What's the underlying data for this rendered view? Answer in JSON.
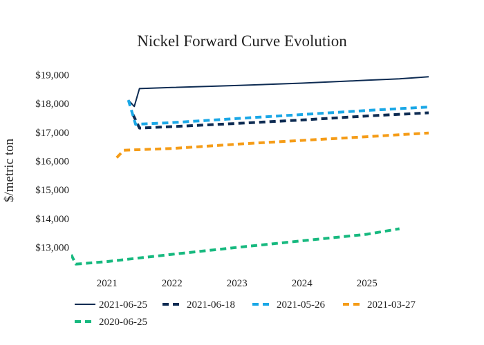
{
  "chart_data": {
    "type": "line",
    "title": "Nickel Forward Curve Evolution",
    "xlabel": "",
    "ylabel": "$/metric ton",
    "x_range": [
      2020.45,
      2025.95
    ],
    "ylim": [
      12200,
      19250
    ],
    "x_ticks": [
      {
        "value": 2021,
        "label": "2021"
      },
      {
        "value": 2022,
        "label": "2022"
      },
      {
        "value": 2023,
        "label": "2023"
      },
      {
        "value": 2024,
        "label": "2024"
      },
      {
        "value": 2025,
        "label": "2025"
      }
    ],
    "y_ticks": [
      {
        "value": 13000,
        "label": "$13,000"
      },
      {
        "value": 14000,
        "label": "$14,000"
      },
      {
        "value": 15000,
        "label": "$15,000"
      },
      {
        "value": 16000,
        "label": "$16,000"
      },
      {
        "value": 17000,
        "label": "$17,000"
      },
      {
        "value": 18000,
        "label": "$18,000"
      },
      {
        "value": 19000,
        "label": "$19,000"
      }
    ],
    "grid": false,
    "legend_position": "bottom",
    "series": [
      {
        "name": "2021-06-25",
        "color": "#0d2b52",
        "dash": "solid",
        "points": [
          [
            2021.33,
            18120
          ],
          [
            2021.42,
            17900
          ],
          [
            2021.5,
            18520
          ],
          [
            2022.0,
            18560
          ],
          [
            2023.0,
            18630
          ],
          [
            2024.0,
            18710
          ],
          [
            2025.0,
            18810
          ],
          [
            2025.5,
            18860
          ],
          [
            2025.95,
            18930
          ]
        ]
      },
      {
        "name": "2021-06-18",
        "color": "#0d2b52",
        "dash": "dash",
        "points": [
          [
            2021.4,
            17620
          ],
          [
            2021.5,
            17150
          ],
          [
            2022.0,
            17200
          ],
          [
            2023.0,
            17310
          ],
          [
            2024.0,
            17430
          ],
          [
            2025.0,
            17570
          ],
          [
            2025.95,
            17680
          ]
        ]
      },
      {
        "name": "2021-05-26",
        "color": "#1aa7e6",
        "dash": "dash",
        "points": [
          [
            2021.33,
            18120
          ],
          [
            2021.44,
            17280
          ],
          [
            2022.0,
            17340
          ],
          [
            2023.0,
            17480
          ],
          [
            2024.0,
            17620
          ],
          [
            2025.0,
            17760
          ],
          [
            2025.95,
            17880
          ]
        ]
      },
      {
        "name": "2021-03-27",
        "color": "#f59c17",
        "dash": "dash",
        "points": [
          [
            2021.15,
            16120
          ],
          [
            2021.26,
            16380
          ],
          [
            2022.0,
            16440
          ],
          [
            2023.0,
            16590
          ],
          [
            2024.0,
            16720
          ],
          [
            2025.0,
            16850
          ],
          [
            2025.95,
            16980
          ]
        ]
      },
      {
        "name": "2020-06-25",
        "color": "#17b97f",
        "dash": "dash",
        "points": [
          [
            2020.45,
            12750
          ],
          [
            2020.52,
            12420
          ],
          [
            2021.0,
            12510
          ],
          [
            2022.0,
            12760
          ],
          [
            2023.0,
            13000
          ],
          [
            2024.0,
            13230
          ],
          [
            2025.0,
            13460
          ],
          [
            2025.5,
            13650
          ]
        ]
      }
    ]
  }
}
